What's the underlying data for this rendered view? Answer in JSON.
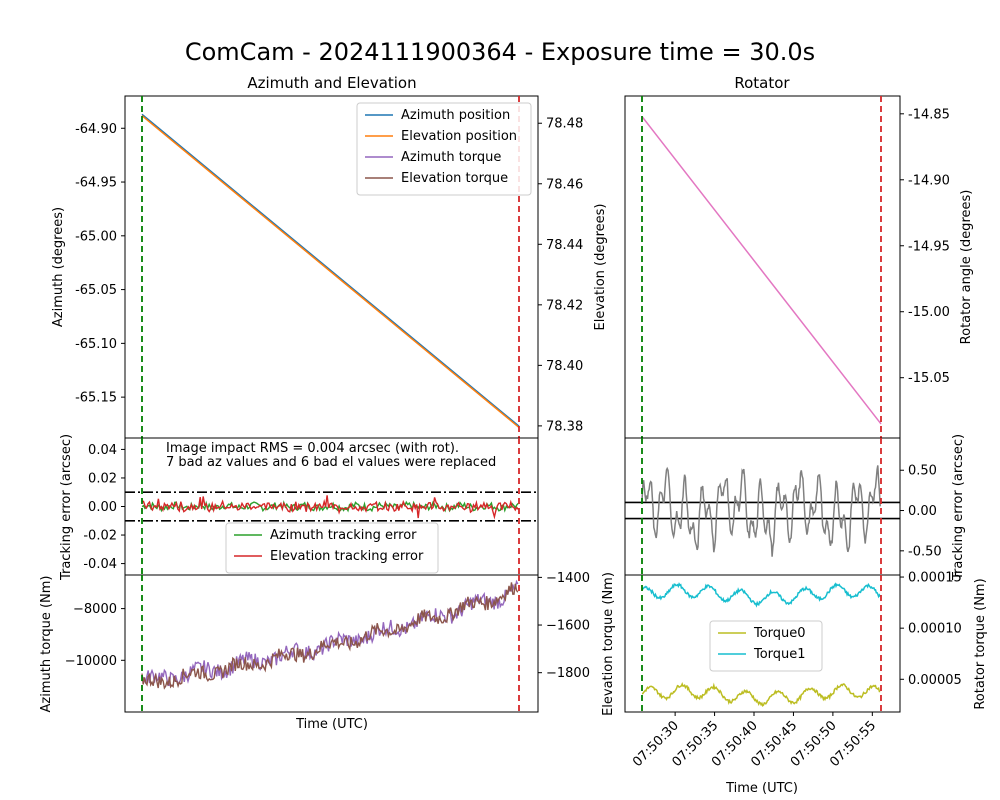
{
  "title": "ComCam - 2024111900364 - Exposure time = 30.0s",
  "chart_data": [
    {
      "id": "az-el",
      "type": "line",
      "title": "Azimuth and Elevation",
      "ylabel_left": "Azimuth (degrees)",
      "ylabel_right": "Elevation (degrees)",
      "yticks_left": [
        "-64.90",
        "-64.95",
        "-65.00",
        "-65.05",
        "-65.10",
        "-65.15"
      ],
      "yticks_right": [
        "78.48",
        "78.46",
        "78.44",
        "78.42",
        "78.40",
        "78.38"
      ],
      "ylim_left": [
        -65.188,
        -64.87
      ],
      "ylim_right": [
        78.376,
        78.489
      ],
      "series": [
        {
          "name": "Azimuth position",
          "color": "#1f77b4",
          "axis": "left",
          "x": [
            0,
            30.3
          ],
          "y": [
            -64.887,
            -65.177
          ]
        },
        {
          "name": "Elevation position",
          "color": "#ff7f0e",
          "axis": "right",
          "x": [
            0,
            30.3
          ],
          "y": [
            78.4825,
            78.3795
          ]
        },
        {
          "name": "Azimuth torque",
          "color": "#9467bd",
          "legend_only": true
        },
        {
          "name": "Elevation torque",
          "color": "#8c564b",
          "legend_only": true
        }
      ],
      "legend_position": "upper-right",
      "vlines": [
        {
          "x": 0,
          "color": "#008000",
          "style": "dashed"
        },
        {
          "x": 30.3,
          "color": "#d62728",
          "style": "dashed"
        }
      ]
    },
    {
      "id": "tracking-error",
      "type": "line",
      "ylabel": "Tracking error (arcsec)",
      "yticks": [
        "0.04",
        "0.02",
        "0.00",
        "-0.02",
        "-0.04"
      ],
      "ylim": [
        -0.048,
        0.048
      ],
      "annotations": [
        "Image impact RMS = 0.004 arcsec (with rot).",
        "7 bad az values and 6 bad el values were replaced"
      ],
      "hlines": [
        0.01,
        -0.01
      ],
      "series": [
        {
          "name": "Azimuth tracking error",
          "color": "#2ca02c",
          "amplitude": 0.0025
        },
        {
          "name": "Elevation tracking error",
          "color": "#d62728",
          "amplitude": 0.003
        }
      ],
      "legend_position": "lower-center"
    },
    {
      "id": "torque",
      "type": "line",
      "xlabel": "Time (UTC)",
      "ylabel_left": "Azimuth torque (Nm)",
      "ylabel_right": "Elevation torque (Nm)",
      "yticks_left": [
        "−8000",
        "−10000"
      ],
      "yticks_right": [
        "−1400",
        "−1600",
        "−1800"
      ],
      "ylim_left": [
        -12000,
        -6700
      ],
      "ylim_right": [
        -1965,
        -1390
      ],
      "series": [
        {
          "name": "Azimuth torque",
          "color": "#9467bd",
          "axis": "left",
          "start": -10800,
          "end": -7300,
          "noise": 300
        },
        {
          "name": "Elevation torque",
          "color": "#8c564b",
          "axis": "right",
          "start": -1845,
          "end": -1450,
          "noise": 30
        }
      ]
    },
    {
      "id": "rotator",
      "type": "line",
      "title": "Rotator",
      "ylabel": "Rotator angle (degrees)",
      "yticks": [
        "-14.85",
        "-14.90",
        "-14.95",
        "-15.00",
        "-15.05"
      ],
      "ylim": [
        -15.0957,
        -14.8365
      ],
      "series": [
        {
          "name": "Rotator angle",
          "color": "#e377c2",
          "x": [
            0,
            30.3
          ],
          "y": [
            -14.852,
            -15.085
          ]
        }
      ]
    },
    {
      "id": "rotator-error",
      "type": "line",
      "ylabel": "Tracking error (arcsec)",
      "yticks": [
        "0.50",
        "0.00",
        "-0.50"
      ],
      "ylim": [
        -0.8,
        0.9
      ],
      "hlines": [
        0.1,
        -0.1
      ],
      "series": [
        {
          "name": "Rotator tracking error",
          "color": "#808080",
          "amplitude": 0.45
        }
      ]
    },
    {
      "id": "rotator-torque",
      "type": "line",
      "xlabel": "Time (UTC)",
      "ylabel": "Rotator torque (Nm)",
      "yticks": [
        "0.00015",
        "0.00010",
        "0.00005"
      ],
      "ylim": [
        1.8e-05,
        0.000152
      ],
      "xticks": [
        "07:50:30",
        "07:50:35",
        "07:50:40",
        "07:50:45",
        "07:50:50",
        "07:50:55"
      ],
      "xtick_seconds": [
        4.2,
        9.2,
        14.2,
        19.2,
        24.2,
        29.2
      ],
      "series": [
        {
          "name": "Torque0",
          "color": "#bcbd22",
          "level": 3.5e-05,
          "amplitude": 6e-06
        },
        {
          "name": "Torque1",
          "color": "#17becf",
          "level": 0.000133,
          "amplitude": 6e-06
        }
      ],
      "legend_position": "center"
    }
  ]
}
